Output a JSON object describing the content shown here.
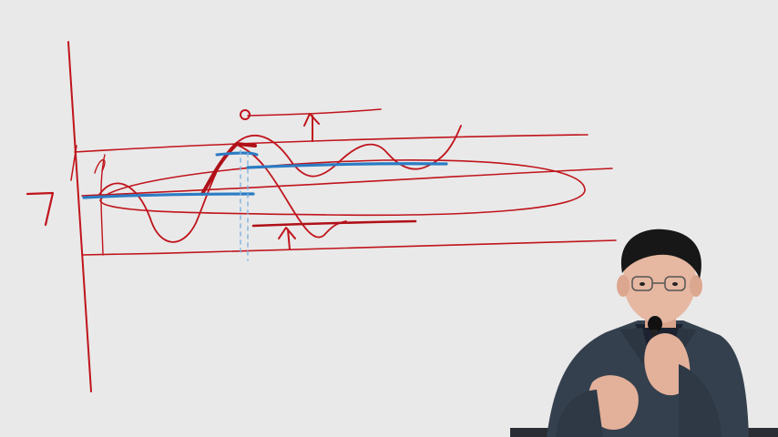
{
  "scene": {
    "kind": "lecture-video-frame",
    "background": "#e9e9e9",
    "ink_colors": {
      "red": "#c0141c",
      "red_dark": "#9e1018",
      "blue": "#2b7cc4",
      "light_blue": "#7fb3e0"
    },
    "handwritten_marks": {
      "left_number": "7",
      "circle_mark": "o",
      "up_arrow_top": "↑",
      "up_arrow_bottom": "↑"
    },
    "presenter": {
      "description_icon": "person-speaking-with-microphone",
      "suit_color": "#34404d",
      "shirt_color": "#1c2230",
      "hair_color": "#171717",
      "skin_color": "#e6b7a1"
    }
  }
}
